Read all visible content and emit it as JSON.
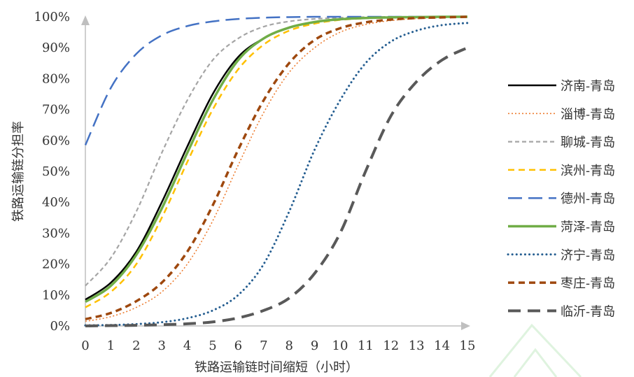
{
  "chart_data": {
    "type": "line",
    "xlabel": "铁路运输链时间缩短（小时）",
    "ylabel": "铁路运输链分担率",
    "x": [
      0,
      1,
      2,
      3,
      4,
      5,
      6,
      7,
      8,
      9,
      10,
      11,
      12,
      13,
      14,
      15
    ],
    "xlim": [
      0,
      15
    ],
    "ylim": [
      0,
      100
    ],
    "x_ticks": [
      "0",
      "1",
      "2",
      "3",
      "4",
      "5",
      "6",
      "7",
      "8",
      "9",
      "10",
      "11",
      "12",
      "13",
      "14",
      "15"
    ],
    "y_ticks": [
      "0%",
      "10%",
      "20%",
      "30%",
      "40%",
      "50%",
      "60%",
      "70%",
      "80%",
      "90%",
      "100%"
    ],
    "grid": false,
    "legend_position": "right",
    "series": [
      {
        "name": "济南-青岛",
        "color": "#000000",
        "dash": "solid",
        "values": [
          8.5,
          14,
          24,
          40,
          58,
          75,
          87,
          93,
          96.5,
          98.3,
          99.2,
          99.6,
          99.8,
          99.9,
          100,
          100
        ]
      },
      {
        "name": "淄博-青岛",
        "color": "#ED7D31",
        "dash": "dot",
        "values": [
          1.5,
          3,
          6,
          11,
          20,
          34,
          52,
          69,
          82,
          90,
          95,
          97.5,
          98.8,
          99.4,
          99.7,
          100
        ]
      },
      {
        "name": "聊城-青岛",
        "color": "#A5A5A5",
        "dash": "short-dash",
        "values": [
          13,
          22,
          37,
          56,
          73,
          86,
          93,
          96.8,
          98.5,
          99.3,
          99.7,
          99.9,
          100,
          100,
          100,
          100
        ]
      },
      {
        "name": "滨州-青岛",
        "color": "#FFC000",
        "dash": "dash",
        "values": [
          6,
          11,
          20,
          35,
          53,
          70,
          83,
          91,
          95.5,
          97.8,
          99,
          99.5,
          99.8,
          99.9,
          100,
          100
        ]
      },
      {
        "name": "德州-青岛",
        "color": "#4472C4",
        "dash": "long-dash",
        "values": [
          58.5,
          77,
          88,
          94,
          97,
          98.5,
          99.3,
          99.7,
          99.9,
          100,
          100,
          100,
          100,
          100,
          100,
          100
        ]
      },
      {
        "name": "菏泽-青岛",
        "color": "#70AD47",
        "dash": "solid-thick",
        "values": [
          7.8,
          13,
          23,
          38,
          56,
          73,
          86,
          93,
          96.5,
          98.3,
          99.2,
          99.6,
          99.8,
          99.9,
          100,
          100
        ]
      },
      {
        "name": "济宁-青岛",
        "color": "#255E91",
        "dash": "dot-thick",
        "values": [
          0.2,
          0.3,
          0.6,
          1.2,
          2.5,
          5,
          10,
          20,
          37,
          57,
          73,
          85,
          92,
          95.5,
          97.3,
          98
        ]
      },
      {
        "name": "枣庄-青岛",
        "color": "#9E480E",
        "dash": "dash-thick",
        "values": [
          2.2,
          4.2,
          8,
          14,
          24,
          39,
          57,
          73,
          85,
          92.5,
          96.3,
          98.2,
          99.1,
          99.6,
          99.8,
          100
        ]
      },
      {
        "name": "临沂-青岛",
        "color": "#595959",
        "dash": "long-dash-thick",
        "values": [
          0,
          0.1,
          0.2,
          0.4,
          0.7,
          1.3,
          2.6,
          5,
          9,
          17,
          30,
          50,
          68,
          79,
          86,
          90
        ]
      }
    ]
  }
}
